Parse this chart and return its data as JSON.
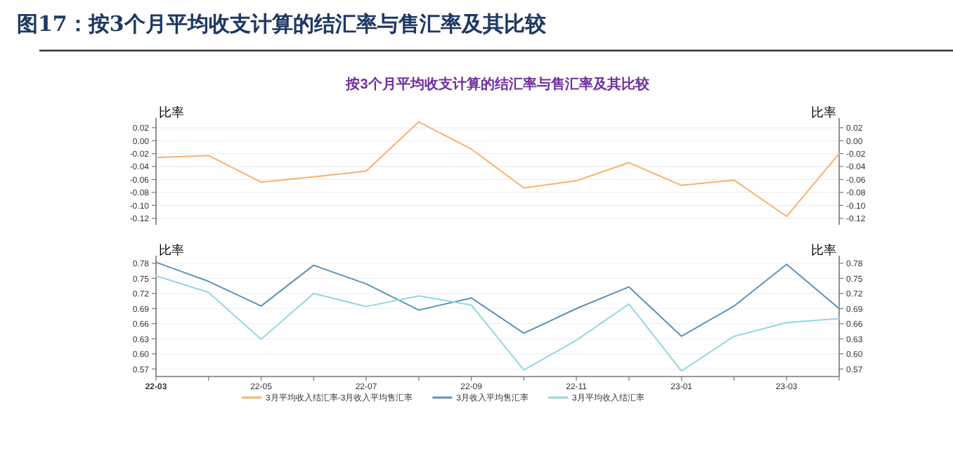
{
  "chart_data": [
    {
      "type": "line",
      "title": "图17：按3个月平均收支计算的结汇率与售汇率及其比较",
      "subtitle": "按3个月平均收支计算的结汇率与售汇率及其比较",
      "ylabel": "比率",
      "y2label": "比率",
      "categories": [
        null,
        null,
        null,
        null,
        null,
        null,
        null,
        null,
        null,
        null,
        null,
        null,
        null,
        null
      ],
      "series": [
        {
          "name": "3月平均收入结汇率-3月收入平均售汇率",
          "color": "#f8b26a",
          "values": [
            -0.026,
            -0.023,
            -0.064,
            -0.056,
            -0.047,
            0.029,
            -0.013,
            -0.073,
            -0.062,
            -0.034,
            -0.069,
            -0.061,
            -0.117,
            -0.02
          ]
        }
      ],
      "ylim": [
        -0.13,
        0.035
      ],
      "yticks": [
        -0.12,
        {
          "value": -0.1,
          "label": "-0.10"
        },
        -0.08,
        -0.06,
        -0.04,
        -0.02,
        {
          "value": 0,
          "label": "0.00"
        },
        0.02
      ],
      "y2lim": [
        -0.13,
        0.035
      ],
      "y2ticks": [
        -0.12,
        {
          "value": -0.1,
          "label": "-0.10"
        },
        -0.08,
        -0.06,
        -0.04,
        -0.02,
        {
          "value": 0,
          "label": "0.00"
        },
        0.02
      ],
      "tick_labels": "y",
      "grid": "y",
      "legend": "bottom",
      "line_style": "solid"
    },
    {
      "type": "line",
      "ylabel": "比率",
      "y2label": "比率",
      "categories": [
        "22-03",
        null,
        "22-05",
        null,
        "22-07",
        null,
        "22-09",
        null,
        "22-11",
        null,
        "23-01",
        null,
        "23-03",
        null
      ],
      "series": [
        {
          "name": "3月收入平均售汇率",
          "color": "#5b93b9",
          "values": [
            0.782,
            0.744,
            0.695,
            0.776,
            0.739,
            0.687,
            0.711,
            0.641,
            0.69,
            0.733,
            0.635,
            0.695,
            0.778,
            0.69
          ]
        },
        {
          "name": "3月平均收入结汇率",
          "color": "#93d8dc",
          "values": [
            0.755,
            0.722,
            0.629,
            0.72,
            0.694,
            0.715,
            0.697,
            0.568,
            0.627,
            0.699,
            0.566,
            0.635,
            0.662,
            0.67
          ]
        }
      ],
      "ylim": [
        0.555,
        0.795
      ],
      "yticks": [
        0.57,
        {
          "value": 0.6,
          "label": "0.60"
        },
        0.63,
        0.66,
        0.69,
        0.72,
        0.75,
        0.78
      ],
      "y2lim": [
        0.555,
        0.795
      ],
      "y2ticks": [
        0.57,
        {
          "value": 0.6,
          "label": "0.60"
        },
        0.63,
        0.66,
        0.69,
        0.72,
        0.75,
        0.78
      ],
      "grid": "y",
      "legend": "bottom",
      "line_style": "solid"
    }
  ]
}
